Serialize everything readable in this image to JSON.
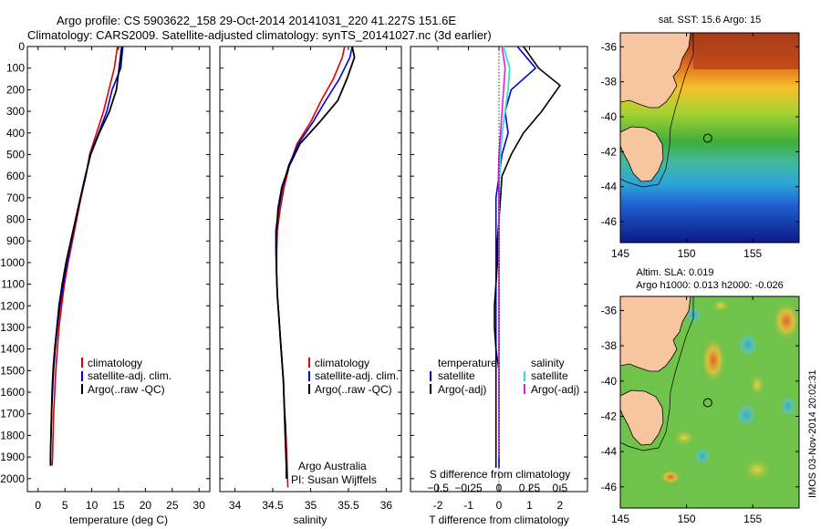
{
  "titles": {
    "line1": "Argo profile: CS 5903622_158 29-Oct-2014 20141031_220 41.227S 151.6E",
    "line2": "Climatology: CARS2009. Satellite-adjusted climatology: synTS_20141027.nc (3d earlier)"
  },
  "colors": {
    "climatology": "#dd0000",
    "satellite": "#0000dd",
    "argo": "#000000",
    "salinity_satellite": "#33dddd",
    "salinity_argo": "#dd22dd",
    "land": "#f7c59f"
  },
  "depth_axis": {
    "ticks": [
      0,
      100,
      200,
      300,
      400,
      500,
      600,
      700,
      800,
      900,
      1000,
      1100,
      1200,
      1300,
      1400,
      1500,
      1600,
      1700,
      1800,
      1900,
      2000
    ],
    "ylim": [
      0,
      2060
    ]
  },
  "panel_temp": {
    "xlabel": "temperature (deg C)",
    "xticks": [
      0,
      5,
      10,
      15,
      20,
      25,
      30
    ],
    "xlim": [
      -2,
      32
    ],
    "legend": [
      "climatology",
      "satellite-adj. clim.",
      "Argo(..raw -QC)"
    ]
  },
  "panel_sal": {
    "xlabel": "salinity",
    "xticks": [
      34,
      34.5,
      35,
      35.5,
      36
    ],
    "xlabels": [
      "34",
      "34.5",
      "35",
      "35.5",
      "36"
    ],
    "xlim": [
      33.8,
      36.2
    ],
    "legend": [
      "climatology",
      "satellite-adj. clim.",
      "Argo(..raw -QC)"
    ],
    "annot1": "Argo Australia",
    "annot2": "PI: Susan Wijffels"
  },
  "panel_diff": {
    "xlabel": "T difference from climatology",
    "top_label": "S difference from climatology",
    "xticks": [
      -2,
      -1,
      0,
      1,
      2
    ],
    "xlim": [
      -2.9,
      2.9
    ],
    "sticks": [
      -0.5,
      -0.25,
      0,
      0.25,
      0.5
    ],
    "sticklabels": [
      "−0.5",
      "−0.25",
      "0",
      "0.25",
      "0.5"
    ],
    "legend_head_t": "temperature",
    "legend_head_s": "salinity",
    "legend_t": [
      "satellite",
      "Argo(-adj)"
    ],
    "legend_s": [
      "satellite",
      "Argo(-adj)"
    ]
  },
  "map_sst": {
    "title": "sat. SST: 15.6  Argo: 15",
    "lon_ticks": [
      145,
      150,
      155
    ],
    "lat_ticks": [
      -36,
      -38,
      -40,
      -42,
      -44,
      -46
    ],
    "lon_range": [
      145,
      158.5
    ],
    "lat_range": [
      -47.2,
      -35.2
    ],
    "float_lat": -41.227,
    "float_lon": 151.6
  },
  "map_sla": {
    "title1": "Altim. SLA: 0.019",
    "title2": "Argo h1000: 0.013 h2000: -0.026",
    "lon_ticks": [
      145,
      150,
      155
    ],
    "lat_ticks": [
      -36,
      -38,
      -40,
      -42,
      -44,
      -46
    ],
    "lon_range": [
      145,
      158.5
    ],
    "lat_range": [
      -47.2,
      -35.2
    ],
    "float_lat": -41.227,
    "float_lon": 151.6
  },
  "footer": "IMOS 03-Nov-2014 20:02:31",
  "chart_data": [
    {
      "type": "line",
      "xlabel": "temperature (deg C)",
      "ylabel": "",
      "xlim": [
        -2,
        32
      ],
      "ylim": [
        2060,
        0
      ],
      "series": [
        {
          "name": "climatology",
          "x": [
            14.8,
            14.2,
            13.2,
            12.2,
            10.9,
            9.6,
            8.9,
            8.0,
            7.2,
            6.4,
            5.6,
            4.9,
            4.4,
            3.9,
            3.6,
            3.3,
            3.1,
            2.9,
            2.8,
            2.7,
            2.6
          ],
          "y": [
            0,
            100,
            200,
            300,
            400,
            500,
            600,
            700,
            800,
            900,
            1000,
            1100,
            1200,
            1300,
            1400,
            1500,
            1600,
            1700,
            1800,
            1900,
            1940
          ]
        },
        {
          "name": "satellite-adj. clim.",
          "x": [
            15.8,
            15.4,
            13.8,
            12.8,
            11.3,
            9.7,
            8.9,
            7.9,
            7.0,
            6.2,
            5.4,
            4.7,
            4.1,
            3.6,
            3.2,
            2.9,
            2.7,
            2.5,
            2.4,
            2.3,
            2.3
          ],
          "y": [
            0,
            100,
            200,
            300,
            400,
            500,
            600,
            700,
            800,
            900,
            1000,
            1100,
            1200,
            1300,
            1400,
            1500,
            1600,
            1700,
            1800,
            1900,
            1940
          ]
        },
        {
          "name": "Argo(..raw -QC)",
          "x": [
            15.6,
            15.1,
            14.6,
            13.3,
            11.4,
            9.8,
            8.8,
            7.9,
            7.0,
            6.1,
            5.2,
            4.5,
            3.9,
            3.5,
            3.1,
            2.8,
            2.6,
            2.5,
            2.4,
            2.3,
            2.3
          ],
          "y": [
            0,
            100,
            200,
            300,
            400,
            500,
            600,
            700,
            800,
            900,
            1000,
            1100,
            1200,
            1300,
            1400,
            1500,
            1600,
            1700,
            1800,
            1900,
            1940
          ]
        }
      ]
    },
    {
      "type": "line",
      "xlabel": "salinity",
      "ylabel": "",
      "xlim": [
        33.8,
        36.2
      ],
      "ylim": [
        2060,
        0
      ],
      "series": [
        {
          "name": "climatology",
          "x": [
            35.45,
            35.42,
            35.3,
            35.14,
            35.0,
            34.82,
            34.72,
            34.65,
            34.6,
            34.56,
            34.55,
            34.55,
            34.56,
            34.58,
            34.6,
            34.62,
            34.64,
            34.65,
            34.67,
            34.68,
            34.69,
            34.7
          ],
          "y": [
            0,
            50,
            150,
            250,
            350,
            450,
            550,
            650,
            750,
            850,
            950,
            1050,
            1150,
            1250,
            1350,
            1450,
            1550,
            1650,
            1750,
            1850,
            1950,
            2040
          ]
        },
        {
          "name": "satellite-adj. clim.",
          "x": [
            35.55,
            35.52,
            35.38,
            35.2,
            35.03,
            34.84,
            34.71,
            34.63,
            34.58,
            34.54,
            34.54,
            34.55,
            34.56,
            34.58,
            34.6,
            34.62,
            34.64,
            34.65,
            34.66,
            34.67,
            34.68,
            34.68
          ],
          "y": [
            0,
            50,
            150,
            250,
            350,
            450,
            550,
            650,
            750,
            850,
            950,
            1050,
            1150,
            1250,
            1350,
            1450,
            1550,
            1650,
            1750,
            1850,
            1950,
            2000
          ]
        },
        {
          "name": "Argo(..raw -QC)",
          "x": [
            35.55,
            35.58,
            35.48,
            35.36,
            35.12,
            34.86,
            34.72,
            34.62,
            34.57,
            34.55,
            34.55,
            34.55,
            34.56,
            34.58,
            34.6,
            34.62,
            34.64,
            34.65,
            34.66,
            34.67,
            34.68,
            34.68
          ],
          "y": [
            0,
            50,
            150,
            250,
            350,
            450,
            550,
            650,
            750,
            850,
            950,
            1050,
            1150,
            1250,
            1350,
            1450,
            1550,
            1650,
            1750,
            1850,
            1950,
            2000
          ]
        }
      ]
    },
    {
      "type": "line",
      "xlabel": "T difference from climatology",
      "ylabel": "",
      "xlim": [
        -2.9,
        2.9
      ],
      "ylim": [
        2060,
        0
      ],
      "series": [
        {
          "name": "temperature satellite",
          "x": [
            0.6,
            1.2,
            0.4,
            0.2,
            0.3,
            0.1,
            0.0,
            -0.1,
            -0.1,
            -0.1,
            -0.1,
            -0.1,
            -0.1,
            -0.1,
            -0.1,
            0.0,
            0.0,
            0.0,
            0.0,
            0.0,
            0.0
          ],
          "y": [
            0,
            100,
            200,
            300,
            400,
            500,
            600,
            700,
            800,
            900,
            1000,
            1100,
            1200,
            1300,
            1400,
            1500,
            1600,
            1700,
            1800,
            1900,
            1950
          ]
        },
        {
          "name": "temperature Argo(-adj)",
          "x": [
            0.8,
            1.3,
            2.0,
            1.4,
            0.8,
            0.4,
            0.1,
            0.05,
            0.0,
            -0.05,
            -0.05,
            -0.1,
            -0.15,
            -0.15,
            -0.1,
            -0.1,
            -0.1,
            -0.1,
            -0.1,
            -0.1,
            -0.1
          ],
          "y": [
            0,
            100,
            180,
            300,
            400,
            500,
            600,
            700,
            800,
            900,
            1000,
            1100,
            1200,
            1300,
            1400,
            1500,
            1600,
            1700,
            1800,
            1900,
            1950
          ]
        },
        {
          "name": "salinity satellite",
          "x": [
            0.15,
            0.35,
            0.3,
            0.2,
            0.1,
            0.05,
            0.02,
            0.0,
            0.0,
            0.0,
            0.0,
            0.0,
            0.0,
            0.0,
            0.0,
            0.0,
            0.0,
            0.0,
            0.0,
            0.0
          ],
          "y": [
            0,
            100,
            200,
            300,
            400,
            500,
            600,
            700,
            800,
            900,
            1000,
            1100,
            1200,
            1300,
            1400,
            1500,
            1600,
            1700,
            1800,
            1900
          ]
        },
        {
          "name": "salinity Argo(-adj)",
          "x": [
            0.1,
            0.2,
            0.15,
            0.1,
            0.05,
            0.0,
            -0.02,
            0.0,
            0.0,
            0.0,
            0.0,
            0.0,
            0.0,
            0.0,
            0.0,
            0.0,
            0.0,
            0.0,
            0.0,
            0.0
          ],
          "y": [
            0,
            100,
            200,
            300,
            400,
            500,
            600,
            700,
            800,
            900,
            1000,
            1100,
            1200,
            1300,
            1400,
            1500,
            1600,
            1700,
            1800,
            1900
          ]
        }
      ]
    }
  ]
}
